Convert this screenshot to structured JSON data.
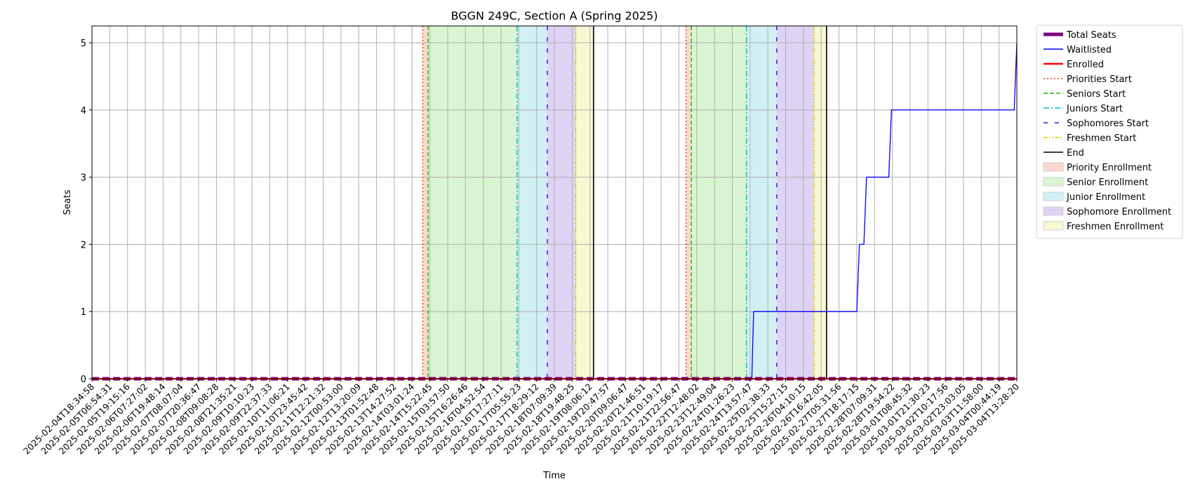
{
  "chart_data": {
    "type": "line",
    "title": "BGGN 249C, Section A (Spring 2025)",
    "xlabel": "Time",
    "ylabel": "Seats",
    "ylim": [
      0,
      5.25
    ],
    "yticks": [
      0,
      1,
      2,
      3,
      4,
      5
    ],
    "grid": true,
    "legend_position": "outside-right",
    "x_ticks": [
      "2025-02-04T18:34:58",
      "2025-02-05T06:54:31",
      "2025-02-05T19:15:16",
      "2025-02-06T07:27:02",
      "2025-02-06T19:48:14",
      "2025-02-07T08:07:04",
      "2025-02-07T20:36:47",
      "2025-02-08T09:08:28",
      "2025-02-08T21:35:21",
      "2025-02-09T10:10:23",
      "2025-02-09T22:37:33",
      "2025-02-10T11:06:21",
      "2025-02-10T23:45:42",
      "2025-02-11T12:21:32",
      "2025-02-12T00:53:00",
      "2025-02-12T13:20:09",
      "2025-02-13T01:52:48",
      "2025-02-13T14:27:52",
      "2025-02-14T03:01:24",
      "2025-02-14T15:22:45",
      "2025-02-15T03:57:50",
      "2025-02-15T16:26:46",
      "2025-02-16T04:52:54",
      "2025-02-16T17:27:11",
      "2025-02-17T05:55:23",
      "2025-02-17T18:29:12",
      "2025-02-18T07:09:39",
      "2025-02-18T19:48:25",
      "2025-02-19T08:06:12",
      "2025-02-19T20:47:57",
      "2025-02-20T09:06:47",
      "2025-02-20T21:46:51",
      "2025-02-21T10:19:17",
      "2025-02-21T22:56:47",
      "2025-02-22T12:48:02",
      "2025-02-23T12:49:04",
      "2025-02-24T01:26:23",
      "2025-02-24T13:57:47",
      "2025-02-25T02:38:33",
      "2025-02-25T15:27:15",
      "2025-02-26T04:10:15",
      "2025-02-26T16:42:05",
      "2025-02-27T05:31:56",
      "2025-02-27T18:17:15",
      "2025-02-28T07:09:31",
      "2025-02-28T19:54:22",
      "2025-03-01T08:45:32",
      "2025-03-01T21:30:23",
      "2025-03-02T10:17:56",
      "2025-03-02T23:03:05",
      "2025-03-03T11:58:00",
      "2025-03-04T00:44:19",
      "2025-03-04T13:28:20"
    ],
    "series": [
      {
        "name": "Total Seats",
        "color": "#800080",
        "style": "thick-dashed",
        "points": [
          [
            0,
            0
          ],
          [
            52,
            0
          ]
        ]
      },
      {
        "name": "Waitlisted",
        "color": "#0000ff",
        "style": "solid",
        "points": [
          [
            0,
            0
          ],
          [
            37.1,
            0
          ],
          [
            37.2,
            1
          ],
          [
            43.0,
            1
          ],
          [
            43.15,
            2
          ],
          [
            43.4,
            2
          ],
          [
            43.55,
            3
          ],
          [
            44.8,
            3
          ],
          [
            44.95,
            4
          ],
          [
            51.85,
            4
          ],
          [
            52,
            5
          ]
        ]
      },
      {
        "name": "Enrolled",
        "color": "#ff0000",
        "style": "solid",
        "points": [
          [
            0,
            0
          ],
          [
            52,
            0
          ]
        ]
      }
    ],
    "markers": [
      {
        "name": "Priorities Start",
        "color": "#ff3300",
        "style": "dotted",
        "x": [
          18.6,
          33.4
        ]
      },
      {
        "name": "Seniors Start",
        "color": "#22bb00",
        "style": "dashed",
        "x": [
          18.9,
          33.7
        ]
      },
      {
        "name": "Juniors Start",
        "color": "#00bbcc",
        "style": "dashdot",
        "x": [
          23.9,
          36.8
        ]
      },
      {
        "name": "Sophomores Start",
        "color": "#5500dd",
        "style": "loosedash",
        "x": [
          25.6,
          38.5
        ]
      },
      {
        "name": "Freshmen Start",
        "color": "#ddcc00",
        "style": "dashdotdot",
        "x": [
          27.2,
          40.6
        ]
      },
      {
        "name": "End",
        "color": "#000000",
        "style": "solid",
        "x": [
          28.2,
          41.3
        ]
      }
    ],
    "regions": [
      {
        "name": "Priority Enrollment",
        "color": "#f9d9cf",
        "spans": [
          [
            18.6,
            18.9
          ],
          [
            33.4,
            33.7
          ]
        ]
      },
      {
        "name": "Senior Enrollment",
        "color": "#d9f5d1",
        "spans": [
          [
            18.9,
            23.9
          ],
          [
            33.7,
            36.8
          ]
        ]
      },
      {
        "name": "Junior Enrollment",
        "color": "#d1f0f4",
        "spans": [
          [
            23.9,
            25.6
          ],
          [
            36.8,
            38.5
          ]
        ]
      },
      {
        "name": "Sophomore Enrollment",
        "color": "#dfd3f5",
        "spans": [
          [
            25.6,
            27.2
          ],
          [
            38.5,
            40.6
          ]
        ]
      },
      {
        "name": "Freshmen Enrollment",
        "color": "#f8f8d3",
        "spans": [
          [
            27.2,
            28.2
          ],
          [
            40.6,
            41.3
          ]
        ]
      }
    ]
  }
}
